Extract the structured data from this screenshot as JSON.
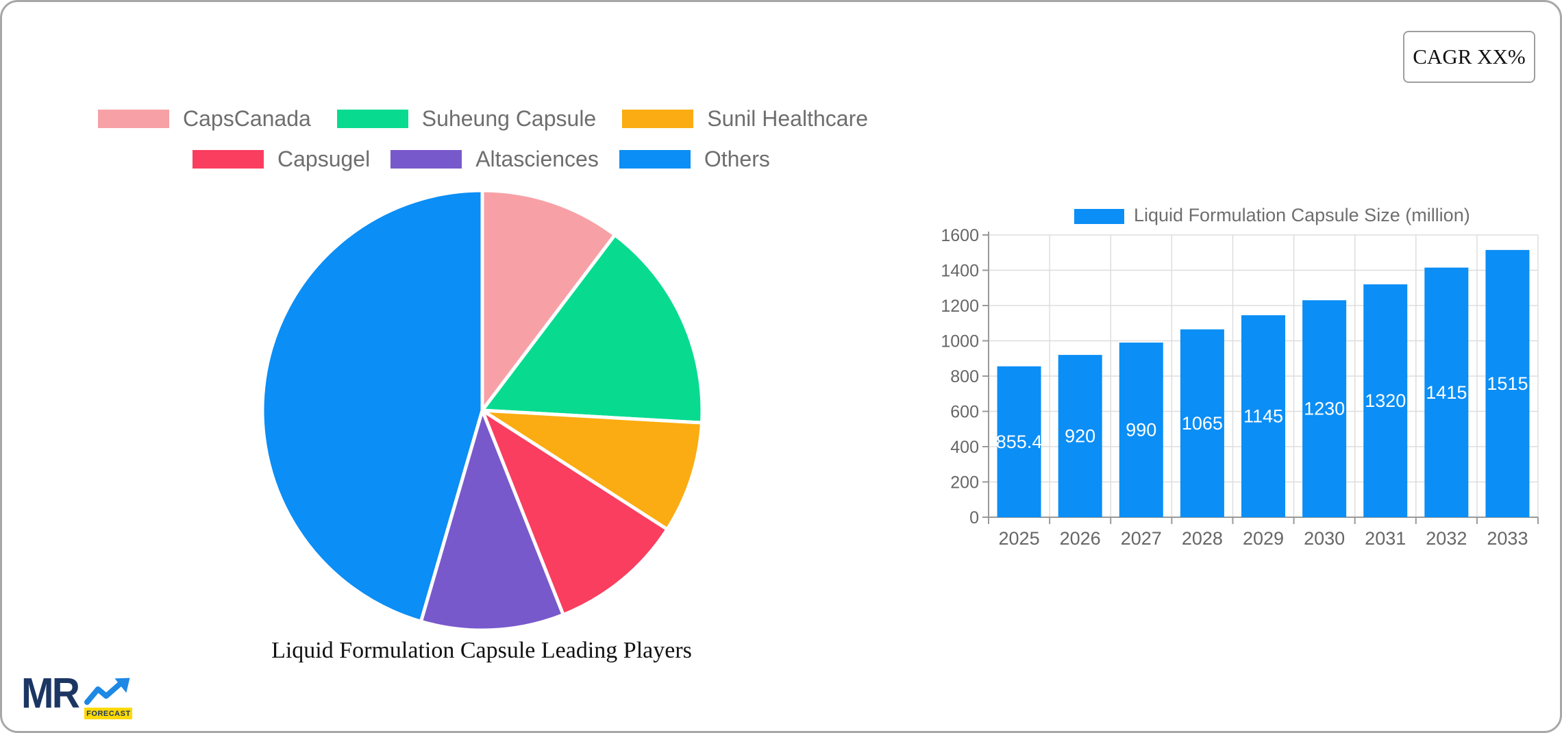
{
  "cagr": {
    "label": "CAGR XX%"
  },
  "logo": {
    "brand": "MR",
    "badge": "FORECAST"
  },
  "colors": {
    "pie_blue": "#0b8ef5",
    "bar_blue": "#0b8ef5",
    "grid": "#dddddd",
    "axis_line": "#999999",
    "axis_text": "#666666",
    "legend_text": "#6e6e6e"
  },
  "chart_data": [
    {
      "type": "pie",
      "title": "Liquid Formulation Capsule Leading Players",
      "labels": [
        "CapsCanada",
        "Suheung Capsule",
        "Sunil Healthcare",
        "Capsugel",
        "Altasciences",
        "Others"
      ],
      "values": [
        10.3,
        15.6,
        8.2,
        9.9,
        10.5,
        45.5
      ],
      "unit": "percent-estimated",
      "colors": [
        "#f7a1a7",
        "#08db8f",
        "#fbac12",
        "#f93e5f",
        "#7859cb",
        "#0b8ef5"
      ],
      "legend_position": "top",
      "legend_rows": [
        [
          0,
          1,
          2
        ],
        [
          3,
          4,
          5
        ]
      ],
      "start_angle_deg": 0,
      "direction": "clockwise"
    },
    {
      "type": "bar",
      "categories": [
        "2025",
        "2026",
        "2027",
        "2028",
        "2029",
        "2030",
        "2031",
        "2032",
        "2033"
      ],
      "series": [
        {
          "name": "Liquid Formulation Capsule Size (million)",
          "values": [
            855.4,
            920,
            990,
            1065,
            1145,
            1230,
            1320,
            1415,
            1515
          ],
          "color": "#0b8ef5"
        }
      ],
      "value_labels": [
        "855.4",
        "920",
        "990",
        "1065",
        "1145",
        "1230",
        "1320",
        "1415",
        "1515"
      ],
      "ylim": [
        0,
        1600
      ],
      "ytick_step": 200,
      "ytick_labels": [
        "0",
        "200",
        "400",
        "600",
        "800",
        "1000",
        "1200",
        "1400",
        "1600"
      ],
      "grid": true,
      "legend_position": "top",
      "value_label_style": "white-inside-center"
    }
  ]
}
